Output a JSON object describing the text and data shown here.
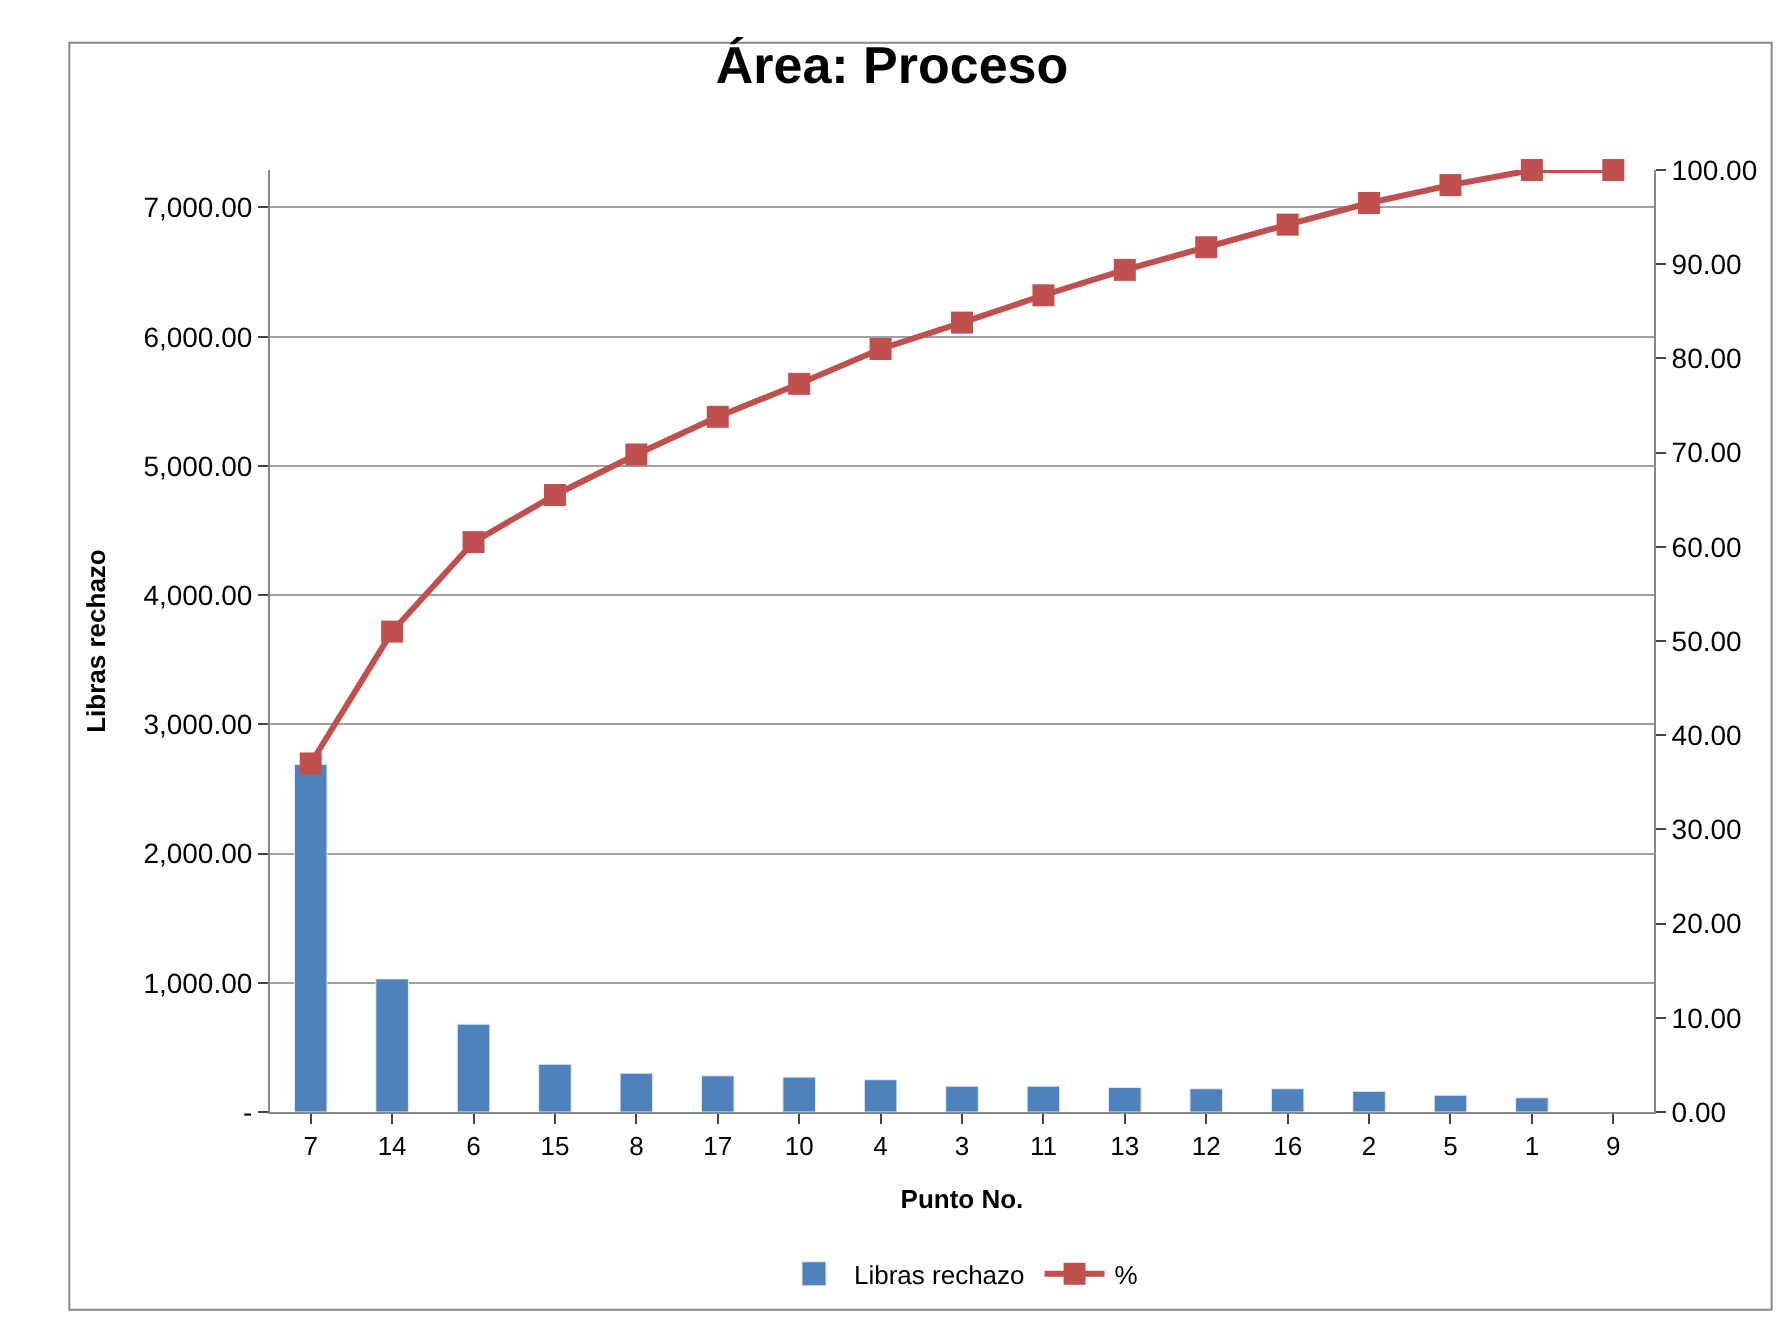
{
  "chart_data": {
    "type": "bar",
    "title": "Área: Proceso",
    "xlabel": "Punto No.",
    "ylabel": "Libras rechazo",
    "categories": [
      "7",
      "14",
      "6",
      "15",
      "8",
      "17",
      "10",
      "4",
      "3",
      "11",
      "13",
      "12",
      "16",
      "2",
      "5",
      "1",
      "9"
    ],
    "series": [
      {
        "name": "Libras rechazo",
        "color": "#4f81bd",
        "values": [
          2690,
          1030,
          680,
          370,
          300,
          280,
          270,
          250,
          200,
          200,
          190,
          180,
          180,
          160,
          130,
          110,
          null
        ]
      },
      {
        "name": "%",
        "type": "line",
        "axis": "y2",
        "color": "#c0504d",
        "marker": "square",
        "values": [
          37,
          51,
          60.5,
          65.5,
          69.8,
          73.8,
          77.3,
          81,
          83.8,
          86.7,
          89.4,
          91.8,
          94.2,
          96.5,
          98.4,
          100,
          100
        ]
      }
    ],
    "ylim": [
      0,
      7290
    ],
    "yticks": [
      {
        "value": 0,
        "label": "-"
      },
      {
        "value": 1000,
        "label": "1,000.00"
      },
      {
        "value": 2000,
        "label": "2,000.00"
      },
      {
        "value": 3000,
        "label": "3,000.00"
      },
      {
        "value": 4000,
        "label": "4,000.00"
      },
      {
        "value": 5000,
        "label": "5,000.00"
      },
      {
        "value": 6000,
        "label": "6,000.00"
      },
      {
        "value": 7000,
        "label": "7,000.00"
      }
    ],
    "y2lim": [
      0,
      100
    ],
    "y2ticks": [
      {
        "value": 0,
        "label": "0.00"
      },
      {
        "value": 10,
        "label": "10.00"
      },
      {
        "value": 20,
        "label": "20.00"
      },
      {
        "value": 30,
        "label": "30.00"
      },
      {
        "value": 40,
        "label": "40.00"
      },
      {
        "value": 50,
        "label": "50.00"
      },
      {
        "value": 60,
        "label": "60.00"
      },
      {
        "value": 70,
        "label": "70.00"
      },
      {
        "value": 80,
        "label": "80.00"
      },
      {
        "value": 90,
        "label": "90.00"
      },
      {
        "value": 100,
        "label": "100.00"
      }
    ],
    "grid": "y",
    "legend": "bottom"
  }
}
